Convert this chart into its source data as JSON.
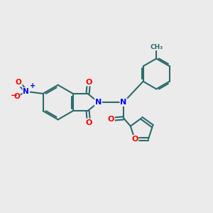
{
  "bg_color": "#ebebeb",
  "bond_color": "#2d6b6b",
  "atom_colors": {
    "N": "#0000ff",
    "O": "#ff0000",
    "C": "#2d6b6b"
  },
  "line_width": 1.5,
  "figsize": [
    3.0,
    3.0
  ],
  "dpi": 100
}
